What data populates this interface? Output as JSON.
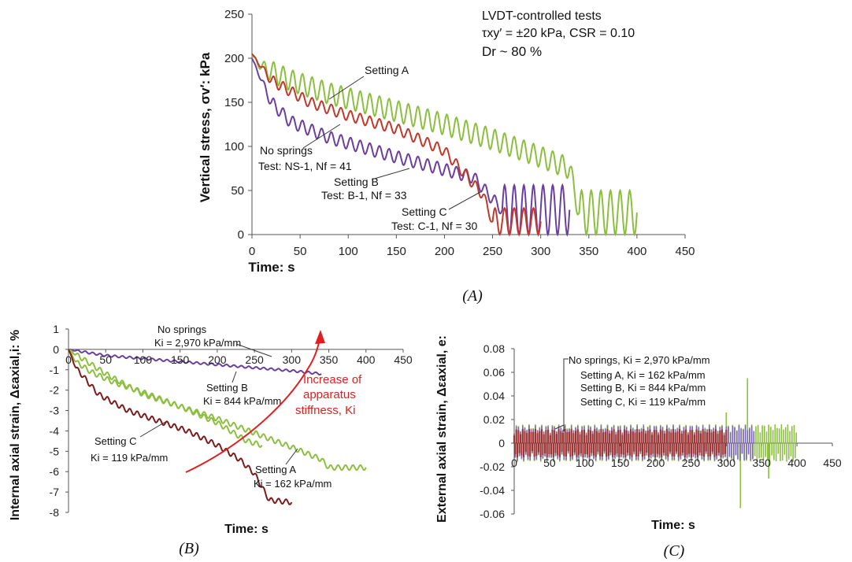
{
  "chart_data": [
    {
      "id": "A",
      "type": "line",
      "caption": "(A)",
      "xlabel": "Time: s",
      "ylabel": "Vertical stress, σv′: kPa",
      "xlim": [
        0,
        450
      ],
      "ylim": [
        0,
        250
      ],
      "xticks": [
        "0",
        "50",
        "100",
        "150",
        "200",
        "250",
        "300",
        "350",
        "400",
        "450"
      ],
      "yticks": [
        "0",
        "50",
        "100",
        "150",
        "200",
        "250"
      ],
      "info": {
        "line1": "LVDT-controlled tests",
        "line2": "τxy′ = ±20 kPa, CSR = 0.10",
        "line3": "Dr ~ 80 %"
      },
      "series": [
        {
          "name": "Setting A",
          "color": "#8cbf3f",
          "color_hex": "#8cbf3f",
          "oscillation_amplitude": 12,
          "period": 10,
          "x": [
            0,
            10,
            40,
            80,
            150,
            200,
            250,
            300,
            330,
            340,
            400
          ],
          "y": [
            203,
            190,
            175,
            160,
            140,
            125,
            108,
            88,
            75,
            25,
            25
          ]
        },
        {
          "name": "No springs",
          "color": "#c0392b",
          "color_hex": "#c0392b",
          "oscillation_amplitude": 6,
          "period": 10,
          "x": [
            0,
            20,
            60,
            100,
            150,
            200,
            240,
            250,
            300
          ],
          "y": [
            205,
            175,
            150,
            135,
            120,
            95,
            45,
            15,
            15
          ]
        },
        {
          "name": "Setting B",
          "color": "#6a3fa0",
          "color_hex": "#6a3fa0",
          "oscillation_amplitude": 7,
          "period": 10,
          "x": [
            0,
            20,
            40,
            80,
            150,
            230,
            260,
            330
          ],
          "y": [
            200,
            150,
            128,
            110,
            88,
            65,
            28,
            28
          ]
        },
        {
          "name": "Setting C",
          "color": "#c0392b",
          "color_hex": "#c0392b",
          "oscillation_amplitude": 0,
          "period": 10,
          "x": [],
          "y": []
        }
      ],
      "annotations": [
        {
          "text": "Setting A"
        },
        {
          "text": "No springs"
        },
        {
          "text": "Test: NS-1, Nf = 41"
        },
        {
          "text": "Setting B"
        },
        {
          "text": "Test: B-1, Nf = 33"
        },
        {
          "text": "Setting C"
        },
        {
          "text": "Test: C-1, Nf = 30"
        }
      ]
    },
    {
      "id": "B",
      "type": "line",
      "caption": "(B)",
      "xlabel": "Time: s",
      "ylabel": "Internal axial strain, Δεaxial,i: %",
      "xlim": [
        0,
        450
      ],
      "ylim": [
        -8,
        1
      ],
      "xticks": [
        "0",
        "50",
        "100",
        "150",
        "200",
        "250",
        "300",
        "350",
        "400",
        "450"
      ],
      "yticks": [
        "1",
        "0",
        "-1",
        "-2",
        "-3",
        "-4",
        "-5",
        "-6",
        "-7",
        "-8"
      ],
      "series": [
        {
          "name": "No springs, Ki = 2,970 kPa/mm",
          "color": "#6a3fa0",
          "x": [
            0,
            50,
            100,
            150,
            200,
            250,
            300,
            340
          ],
          "y": [
            0,
            -0.3,
            -0.45,
            -0.6,
            -0.75,
            -0.9,
            -1.05,
            -1.2
          ]
        },
        {
          "name": "Setting B, Ki = 844 kPa/mm",
          "color": "#8cbf3f",
          "x": [
            0,
            10,
            30,
            60,
            100,
            150,
            200,
            240,
            260
          ],
          "y": [
            0,
            -0.6,
            -1.1,
            -1.6,
            -2.1,
            -2.8,
            -3.6,
            -4.5,
            -4.7
          ]
        },
        {
          "name": "Setting A, Ki = 162 kPa/mm",
          "color": "#8cbf3f",
          "x": [
            0,
            50,
            100,
            150,
            200,
            250,
            300,
            340,
            350,
            400
          ],
          "y": [
            0,
            -1.2,
            -2.2,
            -2.8,
            -3.4,
            -4.1,
            -4.8,
            -5.4,
            -5.8,
            -5.8
          ]
        },
        {
          "name": "Setting C, Ki = 119 kPa/mm",
          "color": "#7b1c1c",
          "x": [
            0,
            10,
            40,
            80,
            120,
            160,
            200,
            230,
            250,
            270,
            300
          ],
          "y": [
            0,
            -0.9,
            -2.2,
            -3.0,
            -3.5,
            -4.0,
            -4.7,
            -5.4,
            -6.1,
            -7.4,
            -7.5
          ]
        }
      ],
      "annotations": [
        {
          "text": "No springs"
        },
        {
          "text": "Ki = 2,970 kPa/mm"
        },
        {
          "text": "Setting B"
        },
        {
          "text": "Ki = 844 kPa/mm"
        },
        {
          "text": "Setting C"
        },
        {
          "text": "Ki = 119 kPa/mm"
        },
        {
          "text": "Setting A"
        },
        {
          "text": "Ki = 162 kPa/mm"
        },
        {
          "text": "Increase of"
        },
        {
          "text": "apparatus"
        },
        {
          "text": "stiffness, Ki"
        }
      ]
    },
    {
      "id": "C",
      "type": "bar",
      "caption": "(C)",
      "xlabel": "Time: s",
      "ylabel": "External axial strain, Δεaxial, e:",
      "xlim": [
        0,
        450
      ],
      "ylim": [
        -0.06,
        0.08
      ],
      "xticks": [
        "0",
        "50",
        "100",
        "150",
        "200",
        "250",
        "300",
        "350",
        "400",
        "450"
      ],
      "yticks": [
        "0.08",
        "0.06",
        "0.04",
        "0.02",
        "0",
        "-0.02",
        "-0.04",
        "-0.06"
      ],
      "series": [
        {
          "name": "Setting A",
          "color": "#8cbf3f",
          "x_end": 400,
          "amplitude": 0.016,
          "spikes": [
            {
              "x": 300,
              "y": 0.03
            },
            {
              "x": 330,
              "y": 0.055
            },
            {
              "x": 320,
              "y": -0.055
            },
            {
              "x": 360,
              "y": -0.03
            }
          ]
        },
        {
          "name": "No springs",
          "color": "#7b63b8",
          "x_end": 340,
          "amplitude": 0.015
        },
        {
          "name": "Setting C",
          "color": "#9c3535",
          "x_end": 300,
          "amplitude": 0.012
        }
      ],
      "legend": [
        {
          "text": "No springs, Ki = 2,970 kPa/mm"
        },
        {
          "text": "Setting A, Ki = 162 kPa/mm"
        },
        {
          "text": "Setting B, Ki = 844 kPa/mm"
        },
        {
          "text": "Setting C, Ki = 119 kPa/mm"
        }
      ]
    }
  ]
}
